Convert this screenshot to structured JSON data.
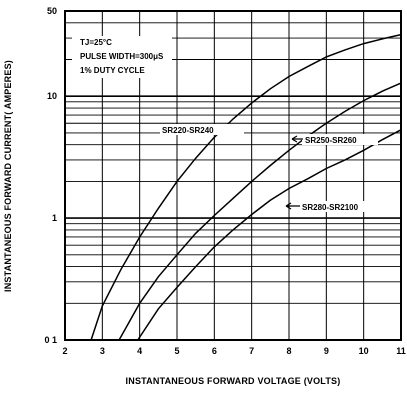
{
  "chart_data": {
    "type": "line",
    "xlabel": "INSTANTANEOUS FORWARD VOLTAGE (VOLTS)",
    "ylabel": "INSTANTANEOUS FORWARD CURRENT( AMPERES)",
    "yscale": "log",
    "xlim": [
      2,
      11
    ],
    "ylim": [
      0.1,
      50
    ],
    "x_ticks": [
      2,
      3,
      4,
      5,
      6,
      7,
      8,
      9,
      10,
      11
    ],
    "x_tick_labels": [
      "2",
      "3",
      "4",
      "5",
      "6",
      "7",
      "8",
      "9",
      "10",
      "11"
    ],
    "y_ticks": [
      0.1,
      1,
      10,
      50
    ],
    "y_tick_labels": [
      "0 1",
      "1",
      "10",
      "50"
    ],
    "grid": true,
    "notes": [
      "TJ=25°C",
      "PULSE WIDTH=300μS",
      "1% DUTY CYCLE"
    ],
    "series": [
      {
        "name": "SR220-SR240",
        "x": [
          2.7,
          3.0,
          3.5,
          4.0,
          4.5,
          5.0,
          5.5,
          6.0,
          6.5,
          7.0,
          7.5,
          8.0,
          8.5,
          9.0,
          9.5,
          10.0,
          10.5,
          11.0
        ],
        "y": [
          0.1,
          0.19,
          0.38,
          0.7,
          1.2,
          2.0,
          3.1,
          4.6,
          6.5,
          8.8,
          11.5,
          14.5,
          17.5,
          21,
          24,
          27,
          29.5,
          32
        ]
      },
      {
        "name": "SR250-SR260",
        "x": [
          3.45,
          4.0,
          4.5,
          5.0,
          5.5,
          6.0,
          6.5,
          7.0,
          7.5,
          8.0,
          8.5,
          9.0,
          9.5,
          10.0,
          10.5,
          11.0
        ],
        "y": [
          0.1,
          0.2,
          0.33,
          0.5,
          0.75,
          1.05,
          1.45,
          2.0,
          2.7,
          3.6,
          4.7,
          6.0,
          7.5,
          9.2,
          11.0,
          12.8
        ]
      },
      {
        "name": "SR280-SR2100",
        "x": [
          3.95,
          4.5,
          5.0,
          5.5,
          6.0,
          6.5,
          7.0,
          7.5,
          8.0,
          8.5,
          9.0,
          9.5,
          10.0,
          10.5,
          11.0
        ],
        "y": [
          0.1,
          0.18,
          0.27,
          0.4,
          0.58,
          0.8,
          1.07,
          1.4,
          1.75,
          2.1,
          2.55,
          3.0,
          3.6,
          4.4,
          5.3
        ]
      }
    ]
  }
}
